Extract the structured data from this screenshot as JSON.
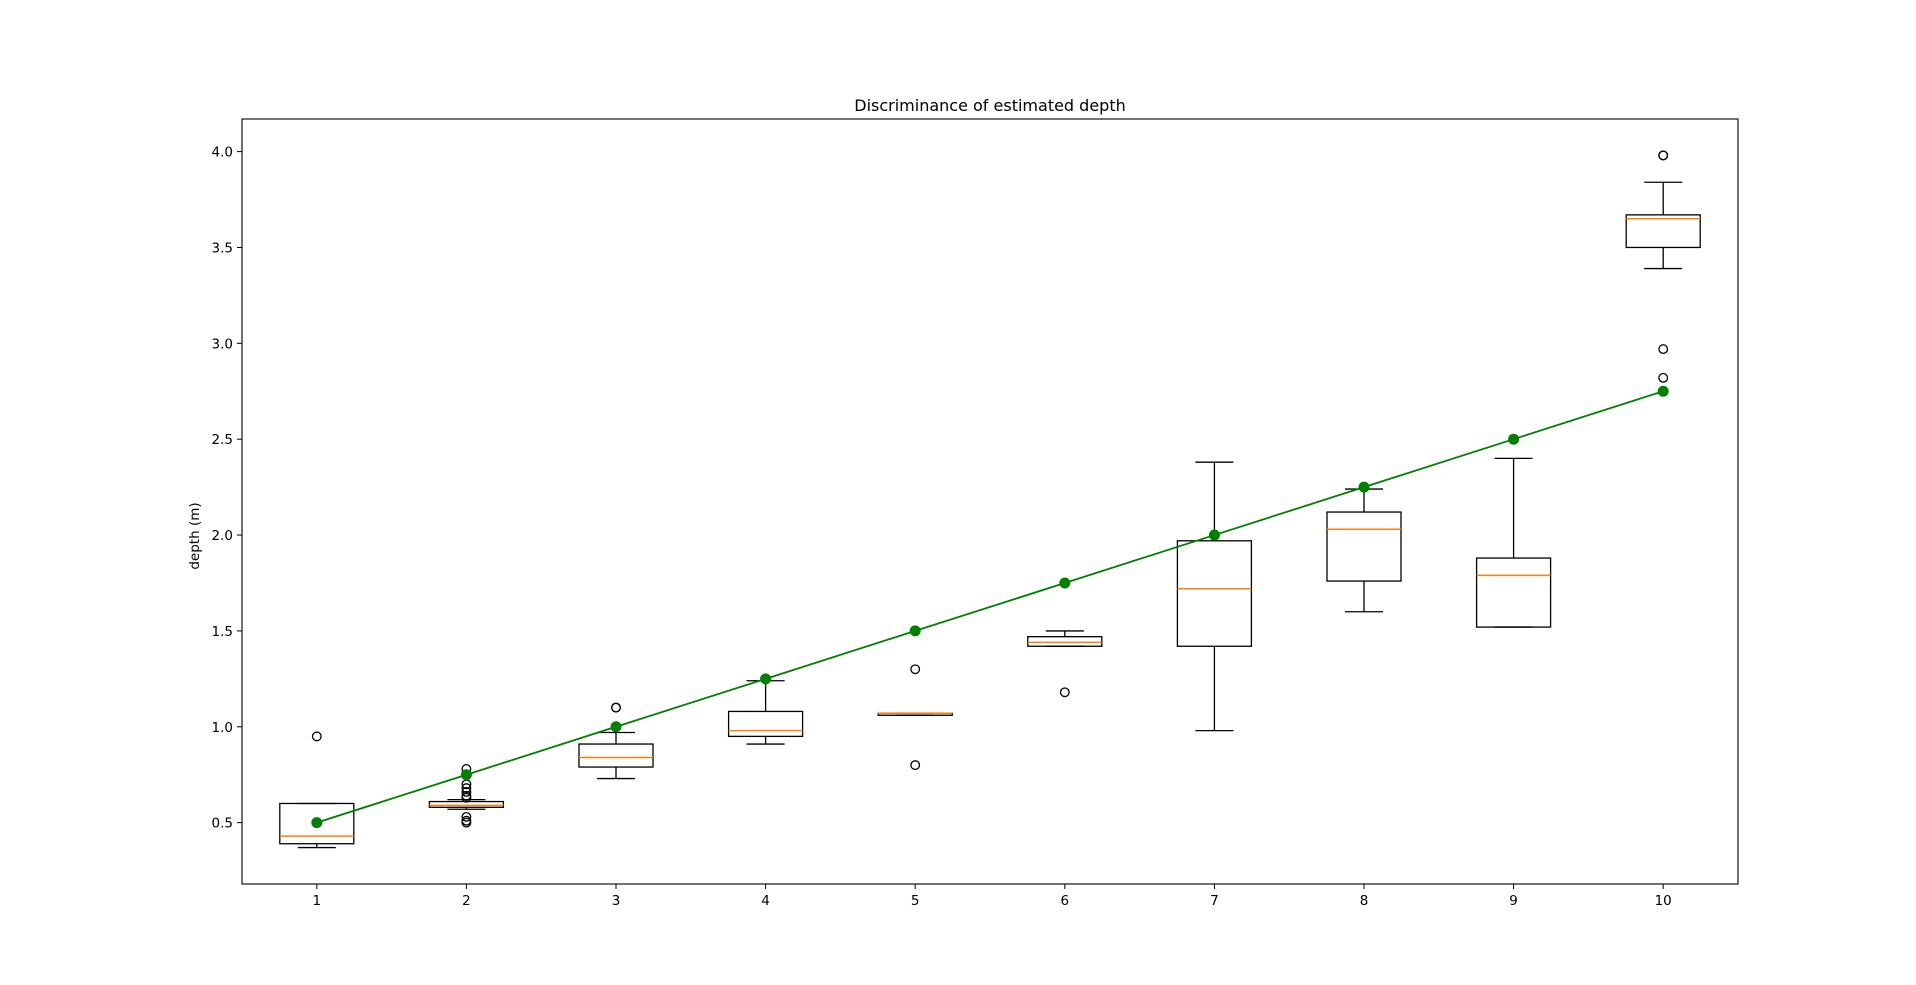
{
  "chart_data": {
    "type": "box",
    "title": "Discriminance of estimated depth",
    "xlabel": "",
    "ylabel": "depth (m)",
    "xlim": [
      0.5,
      10.5
    ],
    "ylim": [
      0.18,
      4.17
    ],
    "x_ticks": [
      "1",
      "2",
      "3",
      "4",
      "5",
      "6",
      "7",
      "8",
      "9",
      "10"
    ],
    "y_ticks": [
      "0.5",
      "1.0",
      "1.5",
      "2.0",
      "2.5",
      "3.0",
      "3.5",
      "4.0"
    ],
    "y_tick_values": [
      0.5,
      1.0,
      1.5,
      2.0,
      2.5,
      3.0,
      3.5,
      4.0
    ],
    "grid": false,
    "colors": {
      "box": "#000000",
      "median": "#ff7f0e",
      "reference": "#008000"
    },
    "boxes": [
      {
        "x": 1,
        "whisker_low": 0.37,
        "q1": 0.39,
        "median": 0.43,
        "q3": 0.6,
        "whisker_high": 0.6,
        "outliers": [
          0.95
        ]
      },
      {
        "x": 2,
        "whisker_low": 0.57,
        "q1": 0.58,
        "median": 0.59,
        "q3": 0.61,
        "whisker_high": 0.62,
        "outliers": [
          0.5,
          0.51,
          0.53,
          0.63,
          0.64,
          0.66,
          0.68,
          0.7,
          0.75,
          0.78
        ]
      },
      {
        "x": 3,
        "whisker_low": 0.73,
        "q1": 0.79,
        "median": 0.84,
        "q3": 0.91,
        "whisker_high": 0.97,
        "outliers": [
          1.1,
          1.1
        ]
      },
      {
        "x": 4,
        "whisker_low": 0.91,
        "q1": 0.95,
        "median": 0.98,
        "q3": 1.08,
        "whisker_high": 1.24,
        "outliers": []
      },
      {
        "x": 5,
        "whisker_low": 1.06,
        "q1": 1.06,
        "median": 1.07,
        "q3": 1.07,
        "whisker_high": 1.07,
        "outliers": [
          0.8,
          1.3
        ]
      },
      {
        "x": 6,
        "whisker_low": 1.42,
        "q1": 1.42,
        "median": 1.44,
        "q3": 1.47,
        "whisker_high": 1.5,
        "outliers": [
          1.18
        ]
      },
      {
        "x": 7,
        "whisker_low": 0.98,
        "q1": 1.42,
        "median": 1.72,
        "q3": 1.97,
        "whisker_high": 2.38,
        "outliers": []
      },
      {
        "x": 8,
        "whisker_low": 1.6,
        "q1": 1.76,
        "median": 2.03,
        "q3": 2.12,
        "whisker_high": 2.24,
        "outliers": []
      },
      {
        "x": 9,
        "whisker_low": 1.52,
        "q1": 1.52,
        "median": 1.79,
        "q3": 1.88,
        "whisker_high": 2.4,
        "outliers": []
      },
      {
        "x": 10,
        "whisker_low": 3.39,
        "q1": 3.5,
        "median": 3.65,
        "q3": 3.67,
        "whisker_high": 3.84,
        "outliers": [
          2.82,
          2.97,
          3.98,
          3.98
        ]
      }
    ],
    "reference_line": {
      "x": [
        1,
        2,
        3,
        4,
        5,
        6,
        7,
        8,
        9,
        10
      ],
      "y": [
        0.5,
        0.75,
        1.0,
        1.25,
        1.5,
        1.75,
        2.0,
        2.25,
        2.5,
        2.75
      ]
    }
  }
}
